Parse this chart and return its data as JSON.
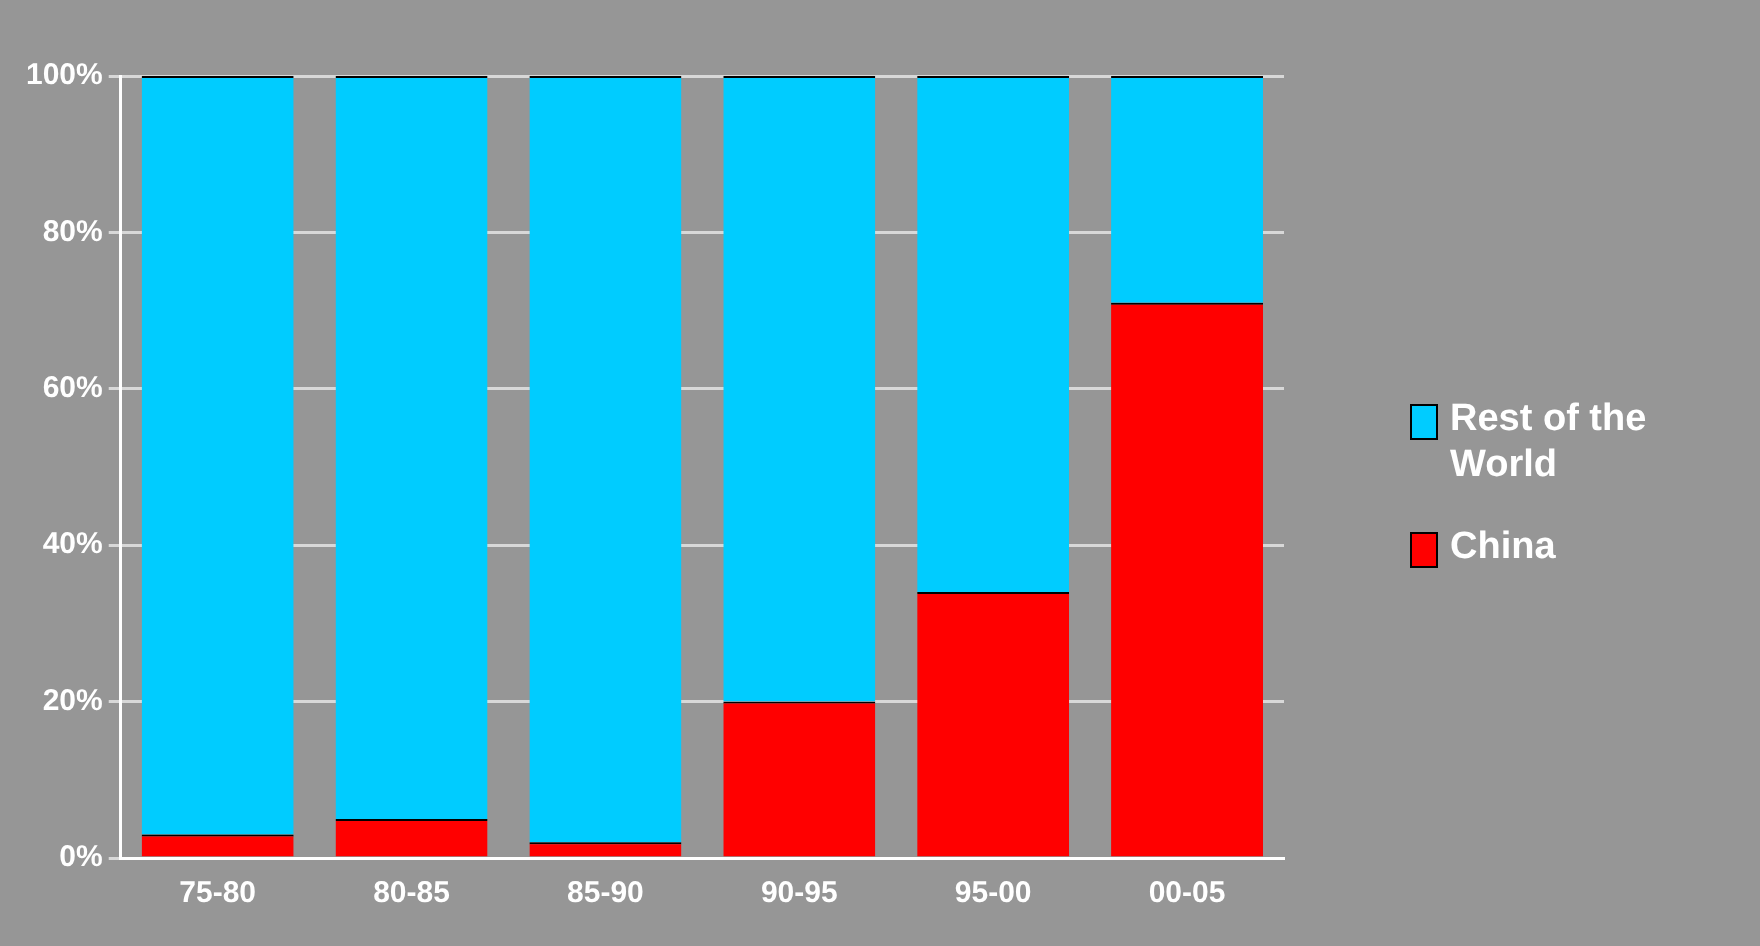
{
  "chart_data": {
    "type": "bar",
    "stacked": true,
    "categories": [
      "75-80",
      "80-85",
      "85-90",
      "90-95",
      "95-00",
      "00-05"
    ],
    "series": [
      {
        "name": "China",
        "color": "#ff0000",
        "values": [
          3,
          5,
          2,
          20,
          34,
          71
        ]
      },
      {
        "name": "Rest of the World",
        "color": "#00ccff",
        "values": [
          97,
          95,
          98,
          80,
          66,
          29
        ]
      }
    ],
    "ylim": [
      0,
      100
    ],
    "yticks": [
      {
        "value": 0,
        "label": "0%"
      },
      {
        "value": 20,
        "label": "20%"
      },
      {
        "value": 40,
        "label": "40%"
      },
      {
        "value": 60,
        "label": "60%"
      },
      {
        "value": 80,
        "label": "80%"
      },
      {
        "value": 100,
        "label": "100%"
      }
    ],
    "grid": "y",
    "legend": "right"
  }
}
